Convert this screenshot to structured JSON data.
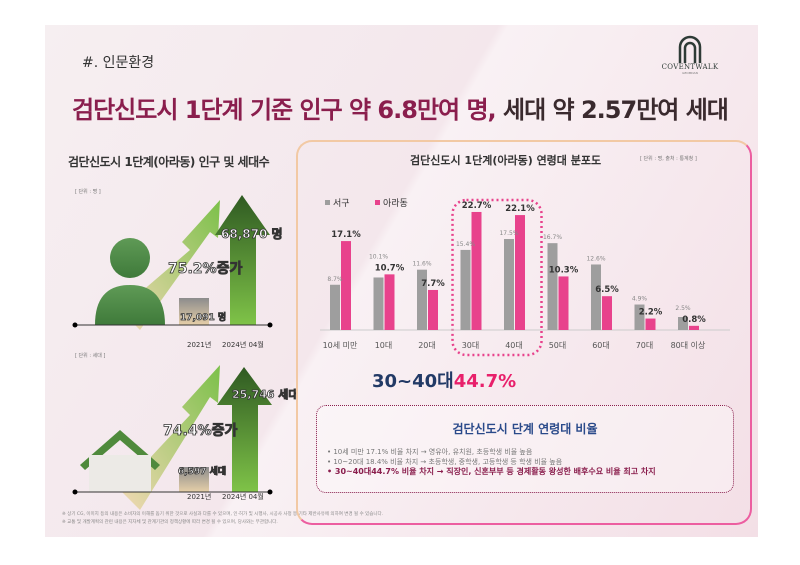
{
  "section": "#. 인문환경",
  "logo": {
    "name": "COVENTWALK",
    "sub": "GEOMDAN"
  },
  "title": {
    "part1": "검단신도시 1단계 기준 인구 약 6.8만여 명,",
    "part2": " 세대 약 2.57만여 세대"
  },
  "left": {
    "title": "검단신도시 1단계(아라동) 인구 및 세대수",
    "population": {
      "unit": "[ 단위 : 명 ]",
      "before": "17,091 명",
      "after": "68,870 명",
      "growth": "75.2%증가",
      "year1": "2021년",
      "year2": "2024년 04월"
    },
    "households": {
      "unit": "[ 단위 : 세대 ]",
      "before": "6,597 세대",
      "after": "25,746 세대",
      "growth": "74.4%증가",
      "year1": "2021년",
      "year2": "2024년 04월"
    }
  },
  "right": {
    "title": "검단신도시 1단계(아라동) 연령대 분포도",
    "source": "[ 단위 : 명, 출처 : 통계청 ]",
    "highlight": {
      "prefix": "30~40대",
      "value": "44.7%"
    },
    "info": {
      "title": "검단신도시   단계 연령대 비율",
      "items": [
        "• 10세 미만 17.1% 비율 차지 →  영유아, 유치원, 초등학생 비율 높음",
        "• 10~20대  18.4% 비율 차지 →  초등학생, 중학생, 고등학생 등 학생 비율 높음",
        "• 30~40대44.7% 비율 차지 → 직장인, 신혼부부 등 경제활동 왕성한 배후수요 비율 최고 차지"
      ]
    }
  },
  "footnotes": [
    "※ 상기 CG, 이미지 등의 내용은 소비자의 이해를 돕기 위한 것으로 사실과 다를 수 있으며, 인·허가 및 시행사, 시공사 사정 등 기타 제반사유에 의하여 변경 될 수 있습니다.",
    "※ 교통 및 개발계획의 관련 내용은 지자체 및 관계기관의 정책상황에 따라 변경 될 수 있으며, 당사와는 무관합니다."
  ],
  "chart_data": {
    "type": "bar",
    "title": "검단신도시 1단계(아라동) 연령대 분포도",
    "categories": [
      "10세 미만",
      "10대",
      "20대",
      "30대",
      "40대",
      "50대",
      "60대",
      "70대",
      "80대 이상"
    ],
    "series": [
      {
        "name": "서구",
        "color": "#9e9e9e",
        "values": [
          8.7,
          10.1,
          11.6,
          15.4,
          17.5,
          16.7,
          12.6,
          4.9,
          2.5
        ]
      },
      {
        "name": "아라동",
        "color": "#e8428c",
        "values": [
          17.1,
          10.7,
          7.7,
          22.7,
          22.1,
          10.3,
          6.5,
          2.2,
          0.8
        ]
      }
    ],
    "ylim": [
      0,
      25
    ],
    "legend": "top-left",
    "highlighted_categories": [
      "30대",
      "40대"
    ]
  }
}
